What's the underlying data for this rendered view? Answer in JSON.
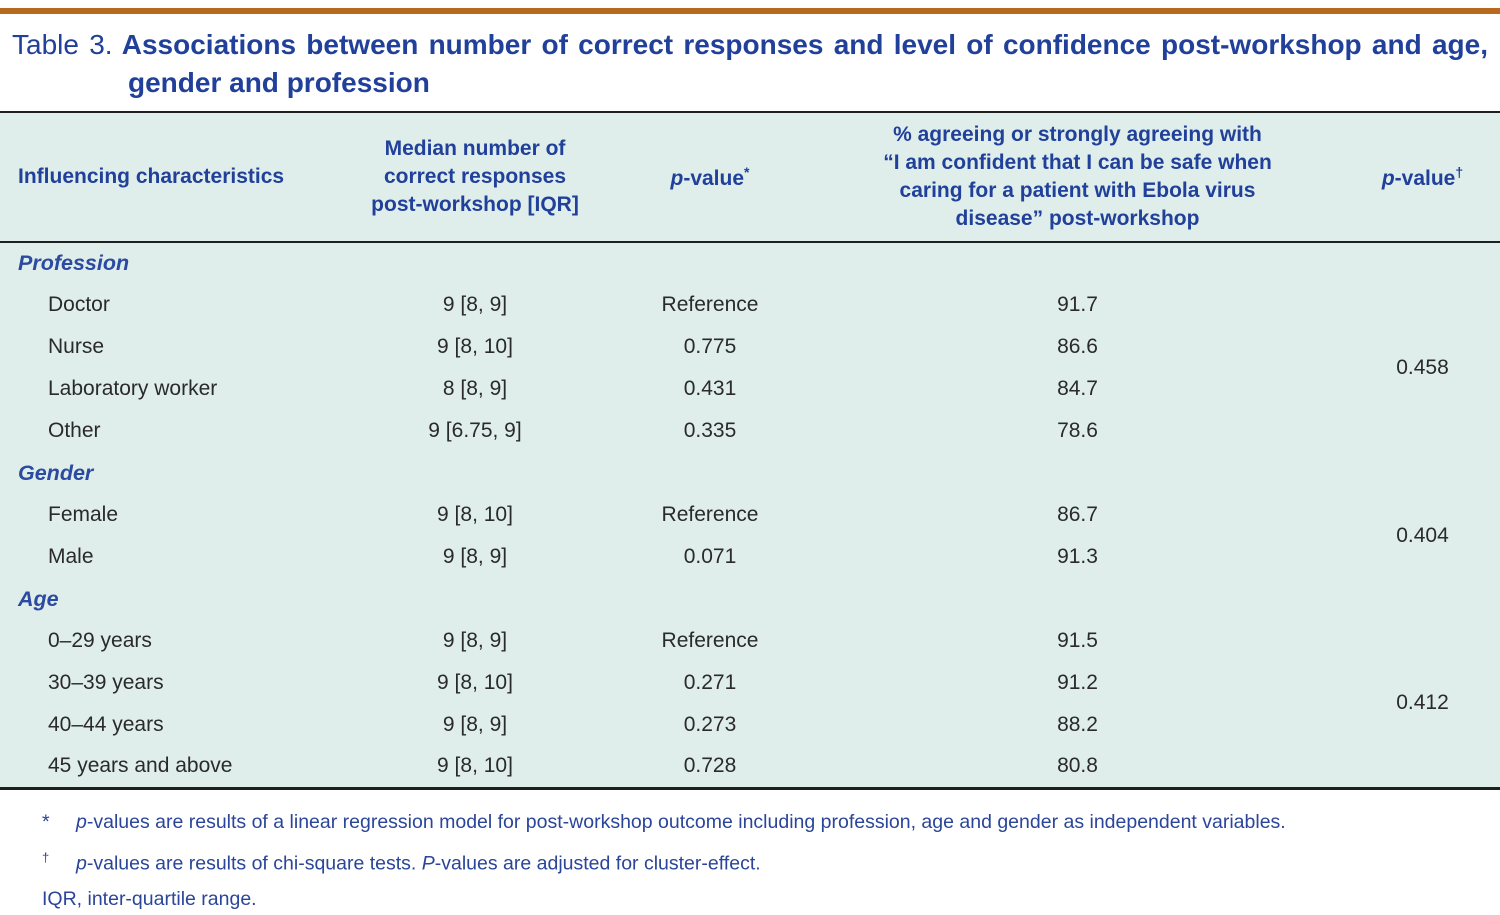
{
  "title": {
    "prefix": "Table 3.",
    "line1": "Associations between number of correct responses and level of confidence post-workshop and age,",
    "line2": "gender and profession"
  },
  "colors": {
    "accent_bar": "#b76a1e",
    "title_blue": "#21409a",
    "section_blue": "#2b4aa0",
    "table_background": "#dfeeeb",
    "border_dark": "#1f1f1f",
    "footnote_blue": "#2a4599",
    "body_text": "#2a2a2a"
  },
  "table": {
    "headers": {
      "influencing": "Influencing characteristics",
      "median_lines": [
        "Median number of",
        "correct responses",
        "post-workshop [IQR]"
      ],
      "pvalue1": {
        "italic": "p",
        "text": "-value",
        "sup": "*"
      },
      "confidence_lines": [
        "% agreeing or strongly agreeing with",
        "“I am confident that I can be safe when",
        "caring for a patient with Ebola virus",
        "disease” post-workshop"
      ],
      "pvalue2": {
        "italic": "p",
        "text": "-value",
        "sup": "†"
      }
    },
    "sections": [
      {
        "label": "Profession",
        "p2": "0.458",
        "rows": [
          {
            "label": "Doctor",
            "median": "9 [8, 9]",
            "p1": "Reference",
            "pct": "91.7"
          },
          {
            "label": "Nurse",
            "median": "9 [8, 10]",
            "p1": "0.775",
            "pct": "86.6"
          },
          {
            "label": "Laboratory worker",
            "median": "8 [8, 9]",
            "p1": "0.431",
            "pct": "84.7"
          },
          {
            "label": "Other",
            "median": "9 [6.75, 9]",
            "p1": "0.335",
            "pct": "78.6"
          }
        ]
      },
      {
        "label": "Gender",
        "p2": "0.404",
        "rows": [
          {
            "label": "Female",
            "median": "9 [8, 10]",
            "p1": "Reference",
            "pct": "86.7"
          },
          {
            "label": "Male",
            "median": "9 [8, 9]",
            "p1": "0.071",
            "pct": "91.3"
          }
        ]
      },
      {
        "label": "Age",
        "p2": "0.412",
        "rows": [
          {
            "label": "0–29 years",
            "median": "9 [8, 9]",
            "p1": "Reference",
            "pct": "91.5"
          },
          {
            "label": "30–39 years",
            "median": "9 [8, 10]",
            "p1": "0.271",
            "pct": "91.2"
          },
          {
            "label": "40–44 years",
            "median": "9 [8, 9]",
            "p1": "0.273",
            "pct": "88.2"
          },
          {
            "label": "45 years and above",
            "median": "9 [8, 10]",
            "p1": "0.728",
            "pct": "80.8"
          }
        ]
      }
    ]
  },
  "footnotes": {
    "fn1": {
      "symbol": "*",
      "p_italic": "p",
      "text": "-values are results of a linear regression model for post-workshop outcome including profession, age and gender as independent variables."
    },
    "fn2": {
      "symbol": "†",
      "p_italic": "p",
      "text1": "-values are results of chi-square tests. ",
      "P_italic": "P",
      "text2": "-values are adjusted for cluster-effect."
    },
    "fn3": "IQR, inter-quartile range."
  }
}
